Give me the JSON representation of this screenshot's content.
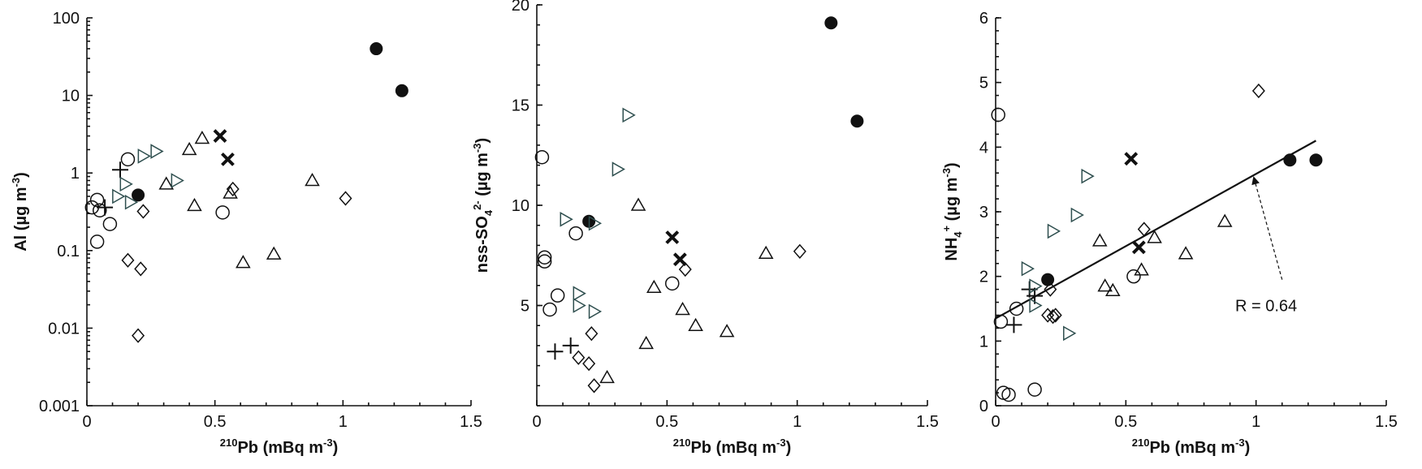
{
  "chart_data": [
    {
      "type": "scatter",
      "yscale": "log",
      "xlim": [
        0,
        1.5
      ],
      "ylim": [
        0.001,
        100
      ],
      "xticks": [
        "0",
        "0.5",
        "1",
        "1.5"
      ],
      "yticks": [
        "0.001",
        "0.01",
        "0.1",
        "1",
        "10",
        "100"
      ],
      "xlabel": {
        "sup": "210",
        "main": "Pb (mBq m",
        "exp": "-3",
        "close": ")"
      },
      "ylabel": {
        "main": "Al (µg m",
        "exp": "-3",
        "close": ")"
      },
      "series": [
        {
          "marker": "circle",
          "points": [
            [
              0.02,
              0.36
            ],
            [
              0.04,
              0.45
            ],
            [
              0.04,
              0.13
            ],
            [
              0.05,
              0.33
            ],
            [
              0.09,
              0.22
            ],
            [
              0.16,
              1.5
            ],
            [
              0.53,
              0.31
            ]
          ]
        },
        {
          "marker": "filled-circle",
          "points": [
            [
              0.2,
              0.52
            ],
            [
              1.13,
              40
            ],
            [
              1.23,
              11.5
            ]
          ]
        },
        {
          "marker": "cross",
          "points": [
            [
              0.52,
              3.0
            ],
            [
              0.55,
              1.5
            ]
          ]
        },
        {
          "marker": "plus",
          "points": [
            [
              0.07,
              0.36
            ],
            [
              0.13,
              1.1
            ]
          ]
        },
        {
          "marker": "triangle-up",
          "points": [
            [
              0.31,
              0.72
            ],
            [
              0.4,
              2.0
            ],
            [
              0.45,
              2.8
            ],
            [
              0.42,
              0.38
            ],
            [
              0.56,
              0.55
            ],
            [
              0.61,
              0.07
            ],
            [
              0.73,
              0.09
            ],
            [
              0.88,
              0.8
            ]
          ]
        },
        {
          "marker": "triangle-right",
          "points": [
            [
              0.12,
              0.5
            ],
            [
              0.15,
              0.72
            ],
            [
              0.17,
              0.42
            ],
            [
              0.22,
              1.65
            ],
            [
              0.27,
              1.9
            ],
            [
              0.35,
              0.8
            ]
          ]
        },
        {
          "marker": "diamond",
          "points": [
            [
              0.16,
              0.075
            ],
            [
              0.2,
              0.008
            ],
            [
              0.21,
              0.058
            ],
            [
              0.22,
              0.32
            ],
            [
              0.57,
              0.62
            ],
            [
              1.01,
              0.47
            ]
          ]
        }
      ]
    },
    {
      "type": "scatter",
      "yscale": "linear",
      "xlim": [
        0,
        1.5
      ],
      "ylim": [
        0,
        20
      ],
      "xticks": [
        "0",
        "0.5",
        "1",
        "1.5"
      ],
      "yticks": [
        "5",
        "10",
        "15",
        "20"
      ],
      "xlabel": {
        "sup": "210",
        "main": "Pb (mBq m",
        "exp": "-3",
        "close": ")"
      },
      "ylabel": {
        "main": "nss-SO",
        "sub": "4",
        "sup": "2-",
        "rest": " (µg m",
        "exp": "-3",
        "close": ")"
      },
      "series": [
        {
          "marker": "circle",
          "points": [
            [
              0.02,
              12.4
            ],
            [
              0.03,
              7.4
            ],
            [
              0.03,
              7.2
            ],
            [
              0.05,
              4.8
            ],
            [
              0.08,
              5.5
            ],
            [
              0.15,
              8.6
            ],
            [
              0.52,
              6.1
            ]
          ]
        },
        {
          "marker": "filled-circle",
          "points": [
            [
              0.2,
              9.2
            ],
            [
              1.13,
              19.1
            ],
            [
              1.23,
              14.2
            ]
          ]
        },
        {
          "marker": "cross",
          "points": [
            [
              0.52,
              8.4
            ],
            [
              0.55,
              7.3
            ]
          ]
        },
        {
          "marker": "plus",
          "points": [
            [
              0.07,
              2.7
            ],
            [
              0.13,
              3.0
            ]
          ]
        },
        {
          "marker": "triangle-up",
          "points": [
            [
              0.27,
              1.4
            ],
            [
              0.39,
              10.0
            ],
            [
              0.45,
              5.9
            ],
            [
              0.42,
              3.1
            ],
            [
              0.56,
              4.8
            ],
            [
              0.61,
              4.0
            ],
            [
              0.73,
              3.7
            ],
            [
              0.88,
              7.6
            ]
          ]
        },
        {
          "marker": "triangle-right",
          "points": [
            [
              0.11,
              9.3
            ],
            [
              0.16,
              5.6
            ],
            [
              0.16,
              5.0
            ],
            [
              0.22,
              9.1
            ],
            [
              0.22,
              4.7
            ],
            [
              0.31,
              11.8
            ],
            [
              0.35,
              14.5
            ]
          ]
        },
        {
          "marker": "diamond",
          "points": [
            [
              0.16,
              2.4
            ],
            [
              0.2,
              2.1
            ],
            [
              0.21,
              3.6
            ],
            [
              0.22,
              1.0
            ],
            [
              0.57,
              6.8
            ],
            [
              1.01,
              7.7
            ]
          ]
        }
      ]
    },
    {
      "type": "scatter",
      "yscale": "linear",
      "xlim": [
        0,
        1.5
      ],
      "ylim": [
        0,
        6
      ],
      "xticks": [
        "0",
        "0.5",
        "1",
        "1.5"
      ],
      "yticks": [
        "0",
        "1",
        "2",
        "3",
        "4",
        "5",
        "6"
      ],
      "xlabel": {
        "sup": "210",
        "main": "Pb (mBq m",
        "exp": "-3",
        "close": ")"
      },
      "ylabel": {
        "main": "NH",
        "sub": "4",
        "sup": "+",
        "rest": " (µg m",
        "exp": "-3",
        "close": ")"
      },
      "annotation": "R = 0.64",
      "regression": {
        "from": [
          0.0,
          1.35
        ],
        "to": [
          1.23,
          4.1
        ]
      },
      "series": [
        {
          "marker": "circle",
          "points": [
            [
              0.01,
              4.5
            ],
            [
              0.02,
              1.3
            ],
            [
              0.03,
              0.2
            ],
            [
              0.05,
              0.17
            ],
            [
              0.08,
              1.5
            ],
            [
              0.15,
              0.25
            ],
            [
              0.53,
              2.0
            ]
          ]
        },
        {
          "marker": "filled-circle",
          "points": [
            [
              0.2,
              1.95
            ],
            [
              1.13,
              3.8
            ],
            [
              1.23,
              3.8
            ]
          ]
        },
        {
          "marker": "cross",
          "points": [
            [
              0.52,
              3.82
            ],
            [
              0.55,
              2.45
            ]
          ]
        },
        {
          "marker": "plus",
          "points": [
            [
              0.07,
              1.25
            ],
            [
              0.13,
              1.8
            ],
            [
              0.15,
              1.7
            ]
          ]
        },
        {
          "marker": "triangle-up",
          "points": [
            [
              0.4,
              2.55
            ],
            [
              0.42,
              1.85
            ],
            [
              0.45,
              1.78
            ],
            [
              0.56,
              2.1
            ],
            [
              0.61,
              2.6
            ],
            [
              0.73,
              2.35
            ],
            [
              0.88,
              2.85
            ]
          ]
        },
        {
          "marker": "triangle-right",
          "points": [
            [
              0.12,
              2.12
            ],
            [
              0.15,
              1.85
            ],
            [
              0.15,
              1.55
            ],
            [
              0.22,
              2.7
            ],
            [
              0.28,
              1.12
            ],
            [
              0.31,
              2.95
            ],
            [
              0.35,
              3.55
            ]
          ]
        },
        {
          "marker": "diamond",
          "points": [
            [
              0.2,
              1.4
            ],
            [
              0.21,
              1.8
            ],
            [
              0.22,
              1.38
            ],
            [
              0.23,
              1.4
            ],
            [
              0.57,
              2.73
            ],
            [
              1.01,
              4.87
            ]
          ]
        }
      ]
    }
  ]
}
